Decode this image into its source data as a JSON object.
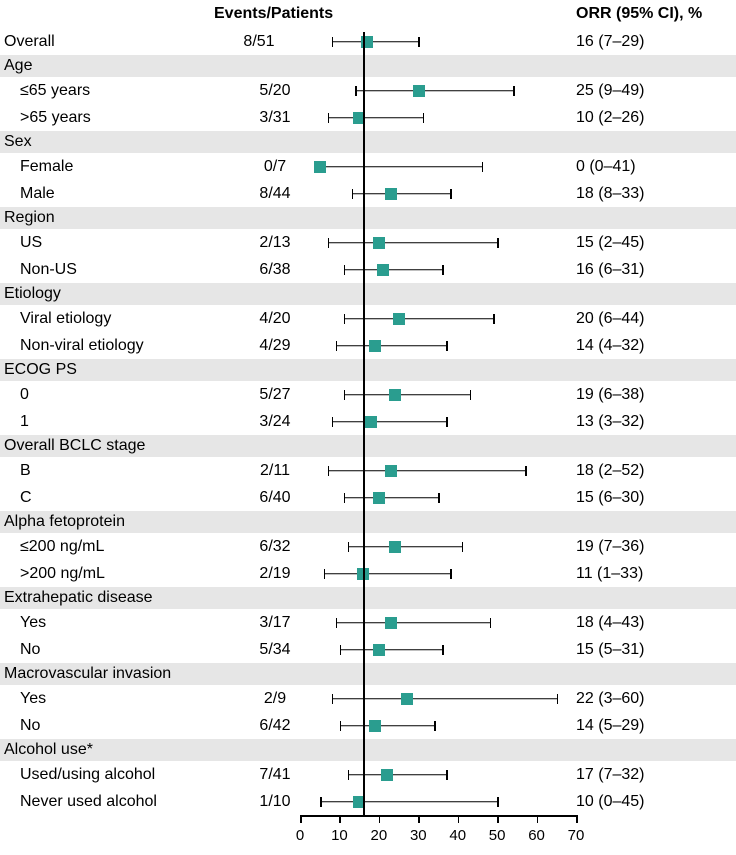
{
  "chart": {
    "type": "forest",
    "headers": {
      "events": "Events/Patients",
      "orr": "ORR (95% CI), %"
    },
    "xaxis": {
      "min": 0,
      "max": 70,
      "ticks": [
        0,
        10,
        20,
        30,
        40,
        50,
        60,
        70
      ]
    },
    "reference_line": 16,
    "marker_color": "#2a9d8f",
    "band_color": "#e6e6e6",
    "background_color": "#ffffff",
    "line_color": "#000000",
    "font_size": 16,
    "rows": [
      {
        "type": "data",
        "label": "Overall",
        "indent": false,
        "events": "8/51",
        "est": 16,
        "lo": 7,
        "hi": 29,
        "orr": "16 (7–29)"
      },
      {
        "type": "group",
        "label": "Age"
      },
      {
        "type": "data",
        "label": "≤65 years",
        "indent": true,
        "events": "5/20",
        "est": 25,
        "lo": 9,
        "hi": 49,
        "orr": "25 (9–49)"
      },
      {
        "type": "data",
        "label": ">65 years",
        "indent": true,
        "events": "3/31",
        "est": 10,
        "lo": 2,
        "hi": 26,
        "orr": "10 (2–26)"
      },
      {
        "type": "group",
        "label": "Sex"
      },
      {
        "type": "data",
        "label": "Female",
        "indent": true,
        "events": "0/7",
        "est": 0,
        "lo": 0,
        "hi": 41,
        "orr": "0 (0–41)"
      },
      {
        "type": "data",
        "label": "Male",
        "indent": true,
        "events": "8/44",
        "est": 18,
        "lo": 8,
        "hi": 33,
        "orr": "18 (8–33)"
      },
      {
        "type": "group",
        "label": "Region"
      },
      {
        "type": "data",
        "label": "US",
        "indent": true,
        "events": "2/13",
        "est": 15,
        "lo": 2,
        "hi": 45,
        "orr": "15 (2–45)"
      },
      {
        "type": "data",
        "label": "Non-US",
        "indent": true,
        "events": "6/38",
        "est": 16,
        "lo": 6,
        "hi": 31,
        "orr": "16 (6–31)"
      },
      {
        "type": "group",
        "label": "Etiology"
      },
      {
        "type": "data",
        "label": "Viral etiology",
        "indent": true,
        "events": "4/20",
        "est": 20,
        "lo": 6,
        "hi": 44,
        "orr": "20 (6–44)"
      },
      {
        "type": "data",
        "label": "Non-viral etiology",
        "indent": true,
        "events": "4/29",
        "est": 14,
        "lo": 4,
        "hi": 32,
        "orr": "14 (4–32)"
      },
      {
        "type": "group",
        "label": "ECOG PS"
      },
      {
        "type": "data",
        "label": "0",
        "indent": true,
        "events": "5/27",
        "est": 19,
        "lo": 6,
        "hi": 38,
        "orr": "19 (6–38)"
      },
      {
        "type": "data",
        "label": "1",
        "indent": true,
        "events": "3/24",
        "est": 13,
        "lo": 3,
        "hi": 32,
        "orr": "13 (3–32)"
      },
      {
        "type": "group",
        "label": "Overall BCLC stage"
      },
      {
        "type": "data",
        "label": "B",
        "indent": true,
        "events": "2/11",
        "est": 18,
        "lo": 2,
        "hi": 52,
        "orr": "18 (2–52)"
      },
      {
        "type": "data",
        "label": "C",
        "indent": true,
        "events": "6/40",
        "est": 15,
        "lo": 6,
        "hi": 30,
        "orr": "15 (6–30)"
      },
      {
        "type": "group",
        "label": "Alpha fetoprotein"
      },
      {
        "type": "data",
        "label": "≤200 ng/mL",
        "indent": true,
        "events": "6/32",
        "est": 19,
        "lo": 7,
        "hi": 36,
        "orr": "19 (7–36)"
      },
      {
        "type": "data",
        "label": ">200 ng/mL",
        "indent": true,
        "events": "2/19",
        "est": 11,
        "lo": 1,
        "hi": 33,
        "orr": "11 (1–33)"
      },
      {
        "type": "group",
        "label": "Extrahepatic disease"
      },
      {
        "type": "data",
        "label": "Yes",
        "indent": true,
        "events": "3/17",
        "est": 18,
        "lo": 4,
        "hi": 43,
        "orr": "18 (4–43)"
      },
      {
        "type": "data",
        "label": "No",
        "indent": true,
        "events": "5/34",
        "est": 15,
        "lo": 5,
        "hi": 31,
        "orr": "15 (5–31)"
      },
      {
        "type": "group",
        "label": "Macrovascular invasion"
      },
      {
        "type": "data",
        "label": "Yes",
        "indent": true,
        "events": "2/9",
        "est": 22,
        "lo": 3,
        "hi": 60,
        "orr": "22 (3–60)"
      },
      {
        "type": "data",
        "label": "No",
        "indent": true,
        "events": "6/42",
        "est": 14,
        "lo": 5,
        "hi": 29,
        "orr": "14 (5–29)"
      },
      {
        "type": "group",
        "label": "Alcohol use*"
      },
      {
        "type": "data",
        "label": "Used/using alcohol",
        "indent": true,
        "events": "7/41",
        "est": 17,
        "lo": 7,
        "hi": 32,
        "orr": "17 (7–32)"
      },
      {
        "type": "data",
        "label": "Never used alcohol",
        "indent": true,
        "events": "1/10",
        "est": 10,
        "lo": 0,
        "hi": 45,
        "orr": "10 (0–45)"
      }
    ]
  }
}
